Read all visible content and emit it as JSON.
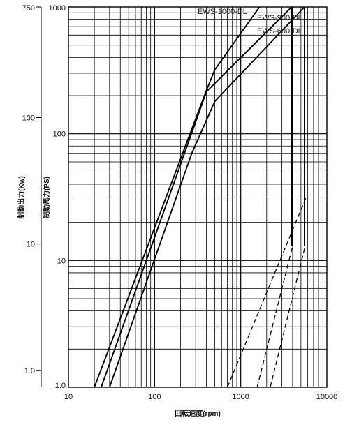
{
  "chart_data": {
    "type": "line",
    "title": "",
    "xlabel": "回転速度(rpm)",
    "ylabel_left": "制動出力(Kw)",
    "ylabel_right": "制動馬力(PS)",
    "x_scale": "log",
    "y_scale": "log",
    "xlim": [
      10,
      10000
    ],
    "ylim_ps": [
      1,
      1000
    ],
    "ylim_kw": [
      0.735,
      750
    ],
    "x_ticks": [
      "10",
      "100",
      "1000",
      "10000"
    ],
    "y_ticks_ps": [
      "1.0",
      "10",
      "100",
      "1000"
    ],
    "y_ticks_kw": [
      {
        "label": "1.0",
        "value": 1
      },
      {
        "label": "10",
        "value": 10
      },
      {
        "label": "100",
        "value": 100
      },
      {
        "label": "750",
        "value": 750
      }
    ],
    "grid": true,
    "series": [
      {
        "name": "EWS-1000-DL",
        "style": "solid",
        "x": [
          20,
          400,
          500,
          1650
        ],
        "y": [
          1,
          220,
          320,
          1000
        ]
      },
      {
        "name": "EWS-900-DL",
        "style": "solid",
        "x": [
          24,
          400,
          3900,
          3900
        ],
        "y": [
          1,
          215,
          1000,
          1000
        ]
      },
      {
        "name": "EWS-600-DL",
        "style": "solid",
        "x": [
          30,
          270,
          500,
          5500,
          5500
        ],
        "y": [
          1,
          70,
          180,
          1000,
          1000
        ]
      },
      {
        "name": "",
        "style": "dashed",
        "x": [
          700,
          5800
        ],
        "y": [
          1,
          32
        ]
      },
      {
        "name": "",
        "style": "dashed",
        "x": [
          1550,
          4000
        ],
        "y": [
          1,
          13
        ]
      },
      {
        "name": "",
        "style": "dashed",
        "x": [
          2200,
          5600
        ],
        "y": [
          1,
          13
        ]
      }
    ],
    "vertical_limits": [
      {
        "x": 3900,
        "y": [
          13,
          1000
        ]
      },
      {
        "x": 5500,
        "y": [
          13,
          1000
        ]
      }
    ]
  }
}
